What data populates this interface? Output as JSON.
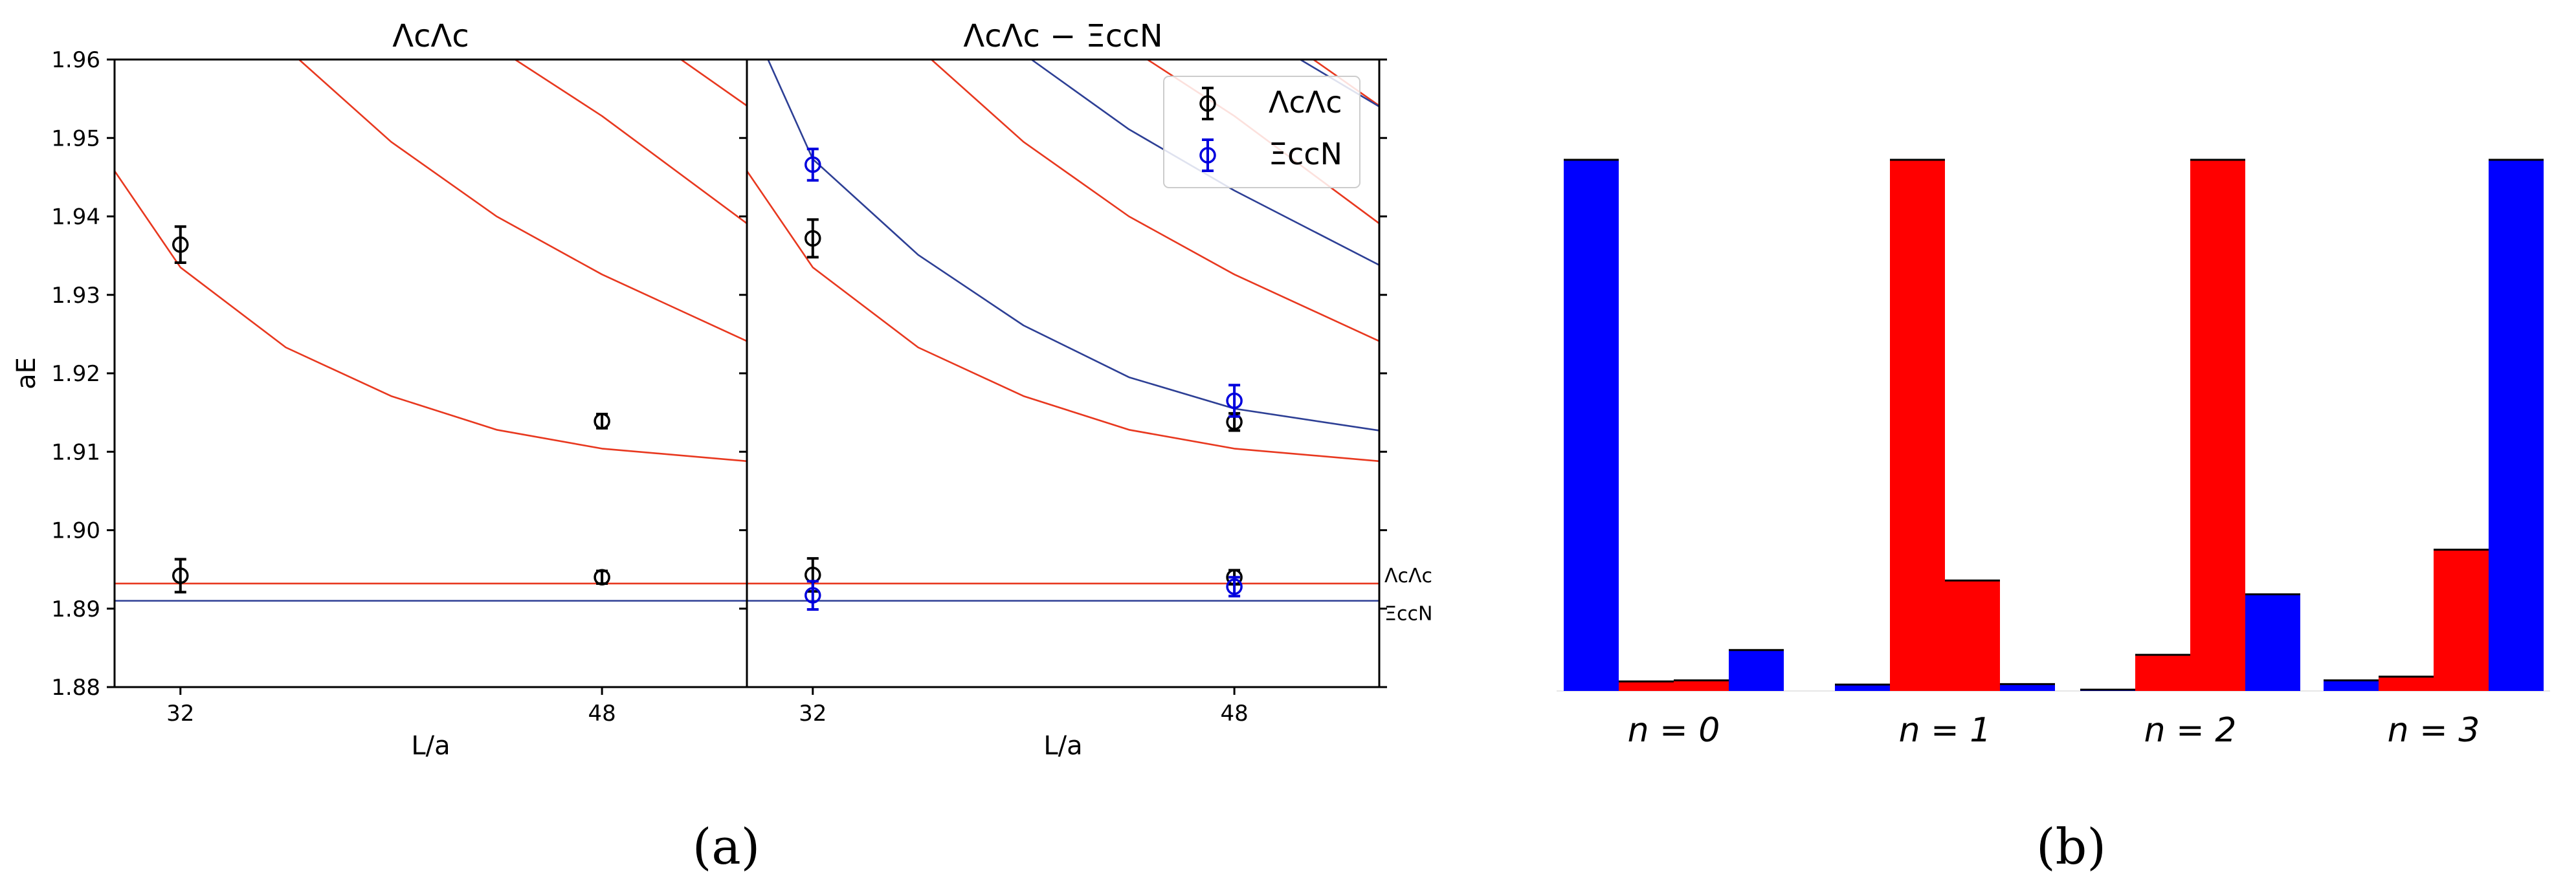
{
  "figure": {
    "panel_a_caption": "(a)",
    "panel_b_caption": "(b)"
  },
  "colors": {
    "red": "#e8381f",
    "blue": "#2d3f95",
    "point_black": "#000000",
    "point_blue": "#0000dd",
    "bar_red": "#ff0000",
    "bar_blue": "#0000ff"
  },
  "chart_data": [
    {
      "type": "scatter",
      "id": "left",
      "title": "ΛcΛc",
      "xlabel": "L/a",
      "ylabel": "aE",
      "xlim": [
        29.5,
        53.5
      ],
      "ylim": [
        1.88,
        1.96
      ],
      "xticks": [
        32,
        48
      ],
      "yticks": [
        1.88,
        1.89,
        1.9,
        1.91,
        1.92,
        1.93,
        1.94,
        1.95,
        1.96
      ],
      "ytick_labels": [
        "1.88",
        "1.89",
        "1.90",
        "1.91",
        "1.92",
        "1.93",
        "1.94",
        "1.95",
        "1.96"
      ],
      "thresholds": [
        {
          "label": "ΛcΛc",
          "y": 1.8932,
          "color": "red"
        },
        {
          "label": "ΞccN",
          "y": 1.891,
          "color": "blue"
        }
      ],
      "curves": [
        {
          "color": "red",
          "points": [
            [
              29.5,
              1.9458
            ],
            [
              32,
              1.9335
            ],
            [
              36,
              1.9233
            ],
            [
              40,
              1.9171
            ],
            [
              44,
              1.9128
            ],
            [
              48,
              1.9104
            ],
            [
              53.5,
              1.9088
            ]
          ]
        },
        {
          "color": "red",
          "points": [
            [
              36.5,
              1.96
            ],
            [
              40,
              1.9495
            ],
            [
              44,
              1.94
            ],
            [
              48,
              1.9326
            ],
            [
              53.5,
              1.9241
            ]
          ]
        },
        {
          "color": "red",
          "points": [
            [
              44.7,
              1.96
            ],
            [
              48,
              1.9528
            ],
            [
              53.5,
              1.9391
            ]
          ]
        },
        {
          "color": "red",
          "points": [
            [
              51,
              1.96
            ],
            [
              53.5,
              1.9541
            ]
          ]
        }
      ],
      "series": [
        {
          "name": "ΛcΛc",
          "color": "point_black",
          "points": [
            [
              32,
              1.9364,
              0.0023
            ],
            [
              32,
              1.8942,
              0.0021
            ],
            [
              48,
              1.9139,
              0.0009
            ],
            [
              48,
              1.894,
              0.0008
            ]
          ]
        }
      ]
    },
    {
      "type": "scatter",
      "id": "right",
      "title": "ΛcΛc − ΞccN",
      "xlabel": "L/a",
      "ylabel": "",
      "xlim": [
        29.5,
        53.5
      ],
      "ylim": [
        1.88,
        1.96
      ],
      "xticks": [
        32,
        48
      ],
      "thresholds": [
        {
          "label": "ΛcΛc",
          "y": 1.8932,
          "color": "red"
        },
        {
          "label": "ΞccN",
          "y": 1.891,
          "color": "blue"
        }
      ],
      "threshold_labels": [
        "ΛcΛc",
        "ΞccN"
      ],
      "curves": [
        {
          "color": "red",
          "points": [
            [
              29.5,
              1.9458
            ],
            [
              32,
              1.9335
            ],
            [
              36,
              1.9233
            ],
            [
              40,
              1.9171
            ],
            [
              44,
              1.9128
            ],
            [
              48,
              1.9104
            ],
            [
              53.5,
              1.9088
            ]
          ]
        },
        {
          "color": "red",
          "points": [
            [
              36.5,
              1.96
            ],
            [
              40,
              1.9495
            ],
            [
              44,
              1.94
            ],
            [
              48,
              1.9326
            ],
            [
              53.5,
              1.9241
            ]
          ]
        },
        {
          "color": "red",
          "points": [
            [
              44.7,
              1.96
            ],
            [
              48,
              1.9528
            ],
            [
              53.5,
              1.9391
            ]
          ]
        },
        {
          "color": "red",
          "points": [
            [
              51,
              1.96
            ],
            [
              53.5,
              1.9541
            ]
          ]
        },
        {
          "color": "blue",
          "points": [
            [
              30.3,
              1.96
            ],
            [
              32,
              1.9473
            ],
            [
              36,
              1.9351
            ],
            [
              40,
              1.9261
            ],
            [
              44,
              1.9195
            ],
            [
              48,
              1.9155
            ],
            [
              53.5,
              1.9127
            ]
          ]
        },
        {
          "color": "blue",
          "points": [
            [
              40.3,
              1.96
            ],
            [
              44,
              1.9511
            ],
            [
              48,
              1.9433
            ],
            [
              53.5,
              1.9338
            ]
          ]
        },
        {
          "color": "blue",
          "points": [
            [
              50.5,
              1.96
            ],
            [
              53.5,
              1.954
            ]
          ]
        }
      ],
      "series": [
        {
          "name": "ΛcΛc",
          "color": "point_black",
          "points": [
            [
              32,
              1.9372,
              0.0024
            ],
            [
              32,
              1.8943,
              0.0021
            ],
            [
              48,
              1.9138,
              0.0011
            ],
            [
              48,
              1.894,
              0.0009
            ]
          ]
        },
        {
          "name": "ΞccN",
          "color": "point_blue",
          "points": [
            [
              32,
              1.9466,
              0.002
            ],
            [
              32,
              1.8917,
              0.0018
            ],
            [
              48,
              1.9165,
              0.002
            ],
            [
              48,
              1.8928,
              0.0012
            ]
          ]
        }
      ],
      "legend": {
        "position": "top-right",
        "entries": [
          "ΛcΛc",
          "ΞccN"
        ]
      }
    },
    {
      "type": "bar",
      "id": "overlap",
      "ylim": [
        0,
        1
      ],
      "categories": [
        "n = 0",
        "n = 1",
        "n = 2",
        "n = 3"
      ],
      "groups": [
        {
          "label": "n = 0",
          "bars": [
            {
              "color": "bar_blue",
              "value": 1.0
            },
            {
              "color": "bar_red",
              "value": 0.018
            },
            {
              "color": "bar_red",
              "value": 0.02
            },
            {
              "color": "bar_blue",
              "value": 0.077
            }
          ]
        },
        {
          "label": "n = 1",
          "bars": [
            {
              "color": "bar_blue",
              "value": 0.012
            },
            {
              "color": "bar_red",
              "value": 1.0
            },
            {
              "color": "bar_red",
              "value": 0.208
            },
            {
              "color": "bar_blue",
              "value": 0.013
            }
          ]
        },
        {
          "label": "n = 2",
          "bars": [
            {
              "color": "bar_blue",
              "value": 0.002
            },
            {
              "color": "bar_red",
              "value": 0.068
            },
            {
              "color": "bar_red",
              "value": 1.0
            },
            {
              "color": "bar_blue",
              "value": 0.182
            }
          ]
        },
        {
          "label": "n = 3",
          "bars": [
            {
              "color": "bar_blue",
              "value": 0.02
            },
            {
              "color": "bar_red",
              "value": 0.027
            },
            {
              "color": "bar_red",
              "value": 0.266
            },
            {
              "color": "bar_blue",
              "value": 1.0
            }
          ]
        }
      ]
    }
  ]
}
